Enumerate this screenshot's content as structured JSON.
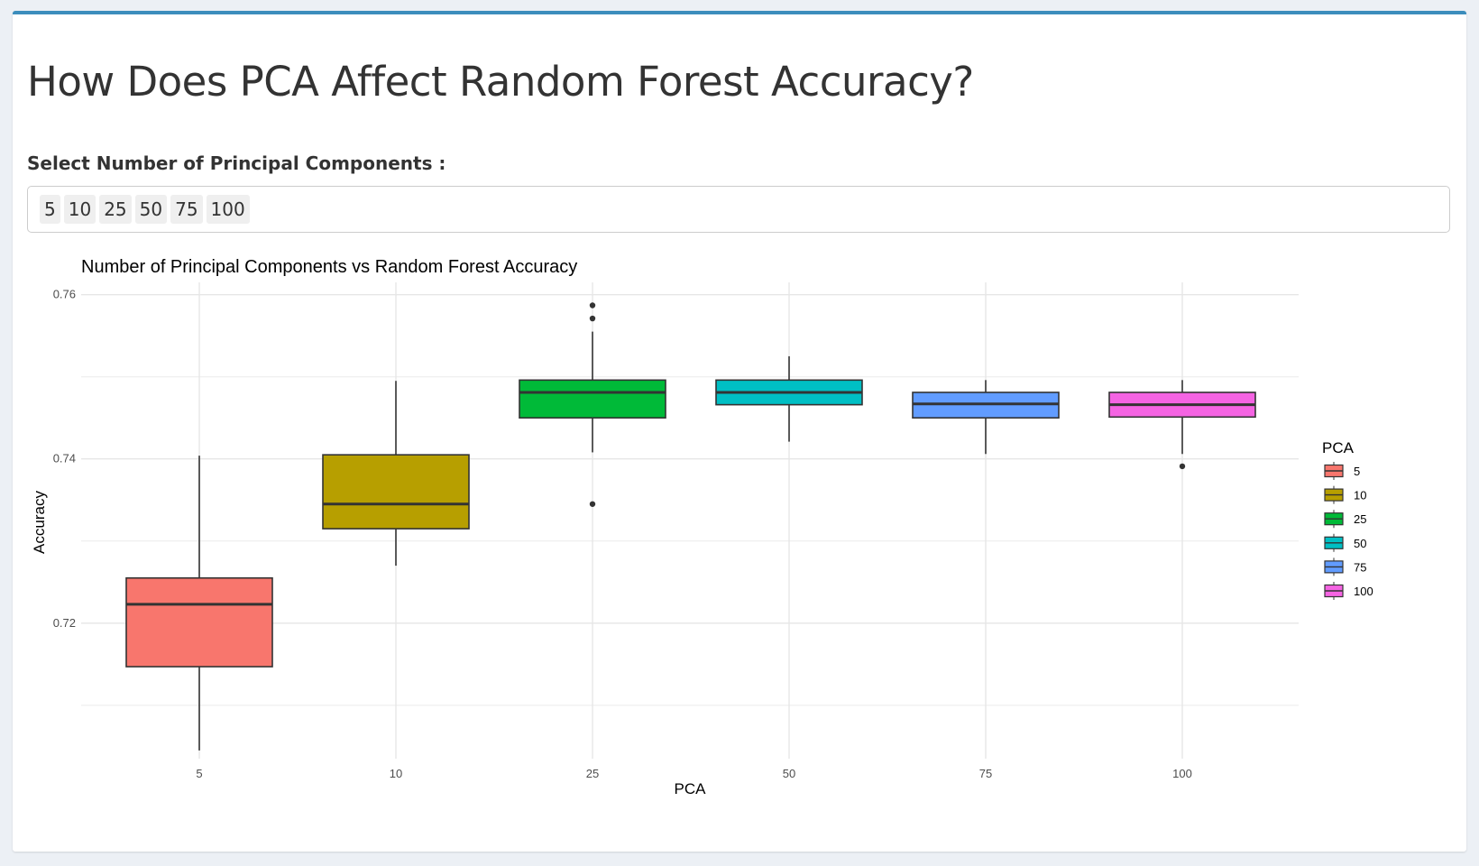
{
  "page": {
    "title": "How Does PCA Affect Random Forest Accuracy?",
    "select_label": "Select Number of Principal Components :",
    "selected": [
      "5",
      "10",
      "25",
      "50",
      "75",
      "100"
    ]
  },
  "colors": {
    "accent": "#3c8dbc",
    "series": [
      "#F8766D",
      "#B79F00",
      "#00BA38",
      "#00BFC4",
      "#619CFF",
      "#F564E3"
    ]
  },
  "chart_data": {
    "type": "boxplot",
    "title": "Number of Principal Components vs Random Forest Accuracy",
    "xlabel": "PCA",
    "ylabel": "Accuracy",
    "legend_title": "PCA",
    "legend_position": "right",
    "grid": true,
    "ylim": [
      0.7035,
      0.7615
    ],
    "yticks": [
      0.72,
      0.74,
      0.76
    ],
    "categories": [
      "5",
      "10",
      "25",
      "50",
      "75",
      "100"
    ],
    "boxes": [
      {
        "name": "5",
        "min": 0.7045,
        "q1": 0.7147,
        "median": 0.7223,
        "q3": 0.7255,
        "max": 0.7404,
        "outliers": []
      },
      {
        "name": "10",
        "min": 0.727,
        "q1": 0.7315,
        "median": 0.7345,
        "q3": 0.7405,
        "max": 0.7495,
        "outliers": []
      },
      {
        "name": "25",
        "min": 0.7408,
        "q1": 0.745,
        "median": 0.7481,
        "q3": 0.7496,
        "max": 0.7555,
        "outliers": [
          0.7345,
          0.7571,
          0.7587
        ]
      },
      {
        "name": "50",
        "min": 0.7421,
        "q1": 0.7466,
        "median": 0.7481,
        "q3": 0.7496,
        "max": 0.7525,
        "outliers": []
      },
      {
        "name": "75",
        "min": 0.7406,
        "q1": 0.745,
        "median": 0.7467,
        "q3": 0.7481,
        "max": 0.7496,
        "outliers": []
      },
      {
        "name": "100",
        "min": 0.7406,
        "q1": 0.7451,
        "median": 0.7466,
        "q3": 0.7481,
        "max": 0.7496,
        "outliers": [
          0.7391
        ]
      }
    ]
  }
}
